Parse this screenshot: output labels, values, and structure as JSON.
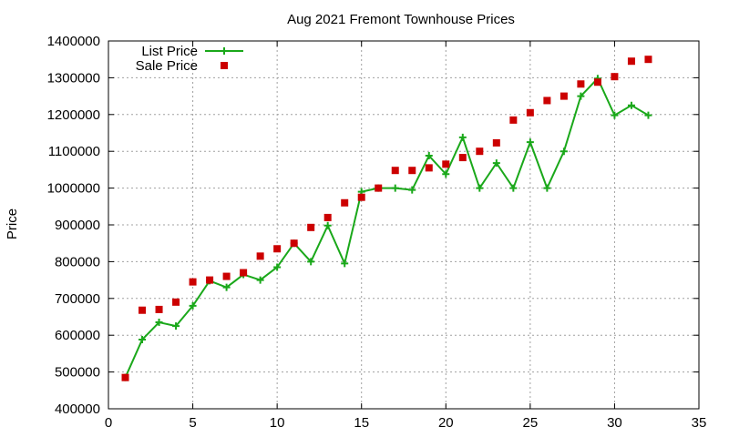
{
  "chart_data": {
    "type": "line",
    "title": "Aug 2021 Fremont Townhouse Prices",
    "xlabel": "",
    "ylabel": "Price",
    "xlim": [
      0,
      35
    ],
    "ylim": [
      400000,
      1400000
    ],
    "xticks": [
      0,
      5,
      10,
      15,
      20,
      25,
      30,
      35
    ],
    "yticks": [
      400000,
      500000,
      600000,
      700000,
      800000,
      900000,
      1000000,
      1100000,
      1200000,
      1300000,
      1400000
    ],
    "grid": true,
    "legend_position": "top-left",
    "series": [
      {
        "name": "List Price",
        "style": "line+cross",
        "color": "#1aa81a",
        "x": [
          1,
          2,
          3,
          4,
          5,
          6,
          7,
          8,
          9,
          10,
          11,
          12,
          13,
          14,
          15,
          16,
          17,
          18,
          19,
          20,
          21,
          22,
          23,
          24,
          25,
          26,
          27,
          28,
          29,
          30,
          31,
          32
        ],
        "y": [
          485000,
          588000,
          635000,
          625000,
          680000,
          748000,
          730000,
          765000,
          750000,
          785000,
          850000,
          800000,
          898000,
          795000,
          990000,
          1000000,
          1000000,
          995000,
          1088000,
          1038000,
          1138000,
          1000000,
          1068000,
          1000000,
          1125000,
          1000000,
          1100000,
          1250000,
          1298000,
          1198000,
          1225000,
          1198000
        ]
      },
      {
        "name": "Sale Price",
        "style": "square",
        "color": "#cc0000",
        "x": [
          1,
          2,
          3,
          4,
          5,
          6,
          7,
          8,
          9,
          10,
          11,
          12,
          13,
          14,
          15,
          16,
          17,
          18,
          19,
          20,
          21,
          22,
          23,
          24,
          25,
          26,
          27,
          28,
          29,
          30,
          31,
          32
        ],
        "y": [
          485000,
          668000,
          670000,
          690000,
          745000,
          750000,
          760000,
          770000,
          815000,
          835000,
          850000,
          893000,
          920000,
          960000,
          975000,
          1000000,
          1048000,
          1048000,
          1055000,
          1065000,
          1083000,
          1100000,
          1123000,
          1185000,
          1205000,
          1238000,
          1250000,
          1283000,
          1288000,
          1303000,
          1345000,
          1350000
        ]
      }
    ]
  }
}
